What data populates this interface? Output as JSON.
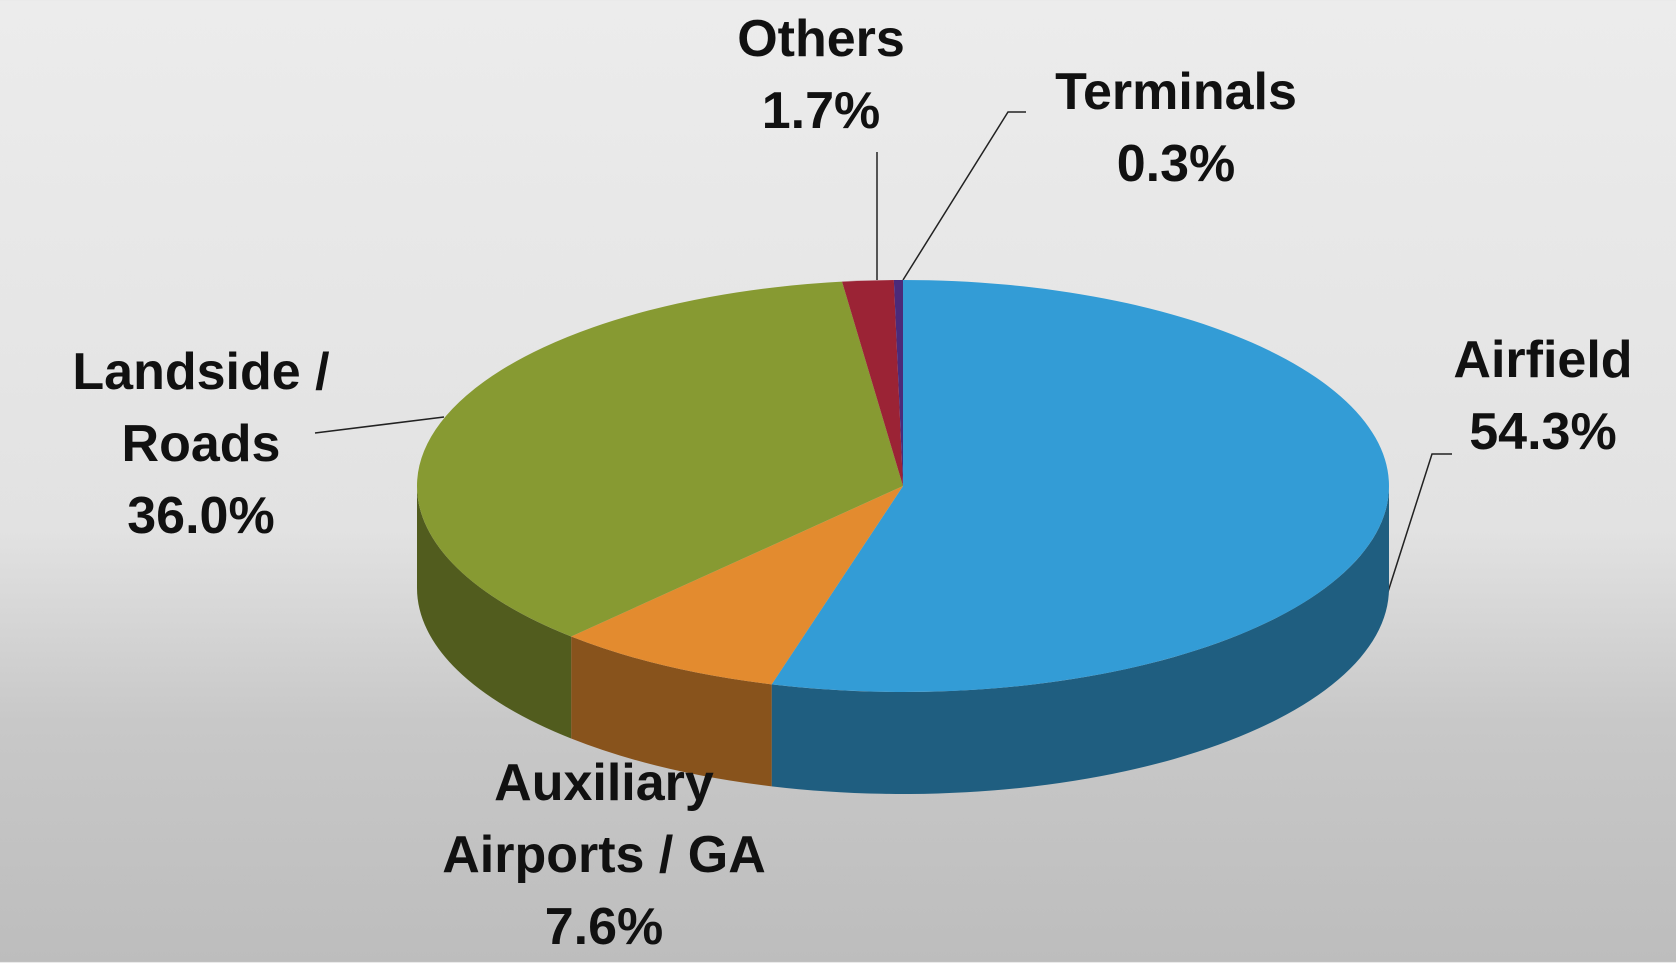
{
  "chart_data": {
    "type": "pie",
    "categories": [
      "Airfield",
      "Auxiliary Airports / GA",
      "Landside / Roads",
      "Others",
      "Terminals"
    ],
    "values": [
      54.3,
      7.6,
      36.0,
      1.7,
      0.3
    ],
    "value_labels": [
      "54.3%",
      "7.6%",
      "36.0%",
      "1.7%",
      "0.3%"
    ],
    "colors": [
      "#339cd6",
      "#e38b2f",
      "#879a32",
      "#9b2335",
      "#4b2a7a"
    ]
  }
}
